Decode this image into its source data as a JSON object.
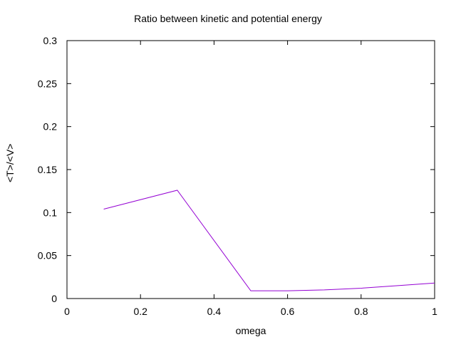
{
  "chart_data": {
    "type": "line",
    "title": "Ratio between kinetic and potential energy",
    "xlabel": "omega",
    "ylabel": "<T>/<V>",
    "xlim": [
      0,
      1
    ],
    "ylim": [
      0,
      0.3
    ],
    "xticks": [
      "0",
      "0.2",
      "0.4",
      "0.6",
      "0.8",
      "1"
    ],
    "yticks": [
      "0",
      "0.05",
      "0.1",
      "0.15",
      "0.2",
      "0.25",
      "0.3"
    ],
    "grid": false,
    "series": [
      {
        "color": "#9400d3",
        "x": [
          0.1,
          0.3,
          0.5,
          0.6,
          0.7,
          0.8,
          0.9,
          1.0
        ],
        "y": [
          0.104,
          0.126,
          0.009,
          0.009,
          0.01,
          0.012,
          0.015,
          0.018
        ]
      }
    ]
  }
}
